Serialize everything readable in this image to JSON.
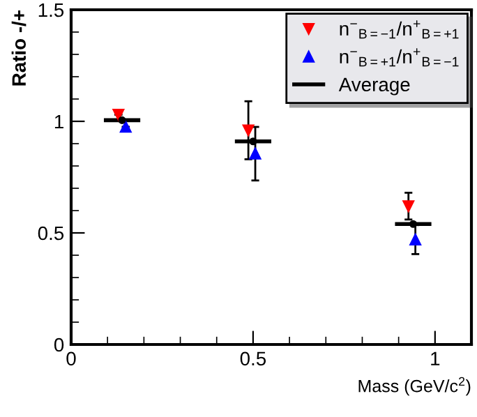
{
  "chart_data": {
    "type": "scatter",
    "xlabel": "Mass (GeV/c$^{2}$)",
    "ylabel": "Ratio -/+",
    "xlim": [
      0,
      1.1
    ],
    "ylim": [
      0,
      1.5
    ],
    "xticks": [
      0,
      0.5,
      1
    ],
    "yticks": [
      0,
      0.5,
      1,
      1.5
    ],
    "grid": false,
    "legend": "top right",
    "series": [
      {
        "name": "n$^{−}$$_{B=−1}$/n$^{+}$$_{B=+1}$",
        "color": "#ff0000",
        "marker": "triangle_down",
        "x": [
          0.13,
          0.487,
          0.927
        ],
        "values": [
          1.03,
          0.96,
          0.62
        ],
        "errors": [
          null,
          0.13,
          0.06
        ]
      },
      {
        "name": "n$^{−}$$_{B=+1}$/n$^{+}$$_{B=−1}$",
        "color": "#0000ff",
        "marker": "triangle",
        "x": [
          0.15,
          0.506,
          0.946
        ],
        "values": [
          0.975,
          0.855,
          0.47
        ],
        "errors": [
          null,
          0.12,
          0.065
        ]
      },
      {
        "name": "Average",
        "color": "#000000",
        "marker": "circle",
        "x": [
          0.14,
          0.5,
          0.94
        ],
        "values": [
          1.005,
          0.91,
          0.54
        ],
        "xerrors": [
          0.05,
          0.05,
          0.05
        ]
      }
    ]
  }
}
